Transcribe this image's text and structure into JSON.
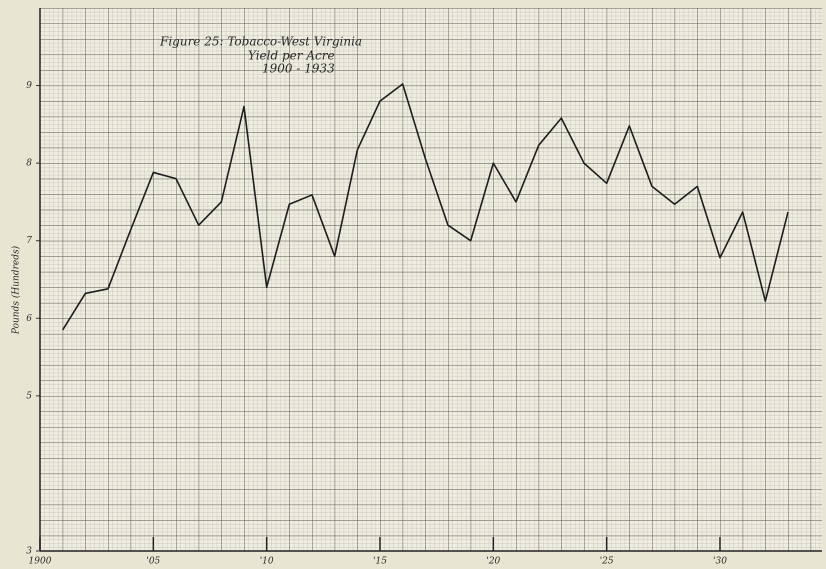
{
  "chart_data": {
    "type": "line",
    "title": [
      "Figure 25: Tobacco-West Virginia",
      "Yield per Acre",
      "1900 - 1933"
    ],
    "y_label": "Pounds (Hundreds)",
    "x": [
      1901,
      1902,
      1903,
      1904,
      1905,
      1906,
      1907,
      1908,
      1909,
      1910,
      1911,
      1912,
      1913,
      1914,
      1915,
      1916,
      1917,
      1918,
      1919,
      1920,
      1921,
      1922,
      1923,
      1924,
      1925,
      1926,
      1927,
      1928,
      1929,
      1930,
      1931,
      1932,
      1933
    ],
    "series": [
      {
        "color": "#1e1e1e",
        "values": [
          5.85,
          6.32,
          6.38,
          7.14,
          7.88,
          7.8,
          7.2,
          7.5,
          8.73,
          6.4,
          7.47,
          7.59,
          6.8,
          8.17,
          8.8,
          9.02,
          8.06,
          7.2,
          7.0,
          8.0,
          7.5,
          8.23,
          8.58,
          8.0,
          7.74,
          8.48,
          7.7,
          7.47,
          7.7,
          6.78,
          7.37,
          6.22,
          7.37
        ]
      }
    ],
    "xlim": [
      1900,
      1934.5
    ],
    "xticks": [
      1900,
      {
        "value": 1905,
        "label": "'05"
      },
      {
        "value": 1910,
        "label": "'10"
      },
      {
        "value": 1915,
        "label": "'15"
      },
      {
        "value": 1920,
        "label": "'20"
      },
      {
        "value": 1925,
        "label": "'25"
      },
      {
        "value": 1930,
        "label": "'30"
      }
    ],
    "ylim": [
      3,
      10
    ],
    "yticks": [
      3,
      5,
      6,
      7,
      8,
      9
    ]
  }
}
